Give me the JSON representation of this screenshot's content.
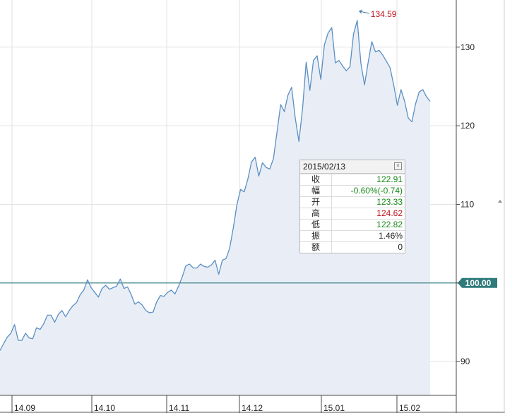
{
  "colors": {
    "line": "#5b8fc3",
    "area": "#e9eef6",
    "grid": "#e2e2e2",
    "axis": "#4a4a4a",
    "ref_line": "#2f7a7a",
    "ref_badge": "#2f7a7a",
    "up": "#c0141e",
    "down": "#1a8a1a",
    "neutral": "#222222"
  },
  "chart_data": {
    "type": "area",
    "ylim": [
      85.7,
      136.0
    ],
    "y_ticks": [
      90,
      100,
      110,
      120,
      130
    ],
    "y_tick_labels": [
      "90",
      "",
      "110",
      "120",
      "130"
    ],
    "x_ticks": [
      "14.09",
      "14.10",
      "14.11",
      "14.12",
      "15.01",
      "15.02"
    ],
    "reference_line": {
      "value": 100.0,
      "label": "100.00"
    },
    "peak": {
      "value": 134.59,
      "label": "134.59"
    },
    "grid": true,
    "series": [
      {
        "values": [
          91.4,
          92.3,
          93.1,
          93.6,
          94.7,
          92.7,
          92.7,
          93.6,
          93.0,
          92.9,
          94.3,
          94.1,
          94.8,
          95.9,
          95.9,
          95.0,
          96.0,
          96.5,
          95.7,
          96.5,
          97.1,
          97.5,
          98.5,
          99.1,
          100.4,
          99.4,
          98.8,
          98.2,
          99.3,
          99.7,
          99.2,
          99.4,
          99.6,
          100.5,
          99.3,
          99.5,
          98.5,
          97.3,
          97.6,
          97.2,
          96.5,
          96.2,
          96.3,
          97.6,
          98.4,
          98.3,
          98.8,
          99.1,
          98.6,
          99.6,
          100.8,
          102.2,
          102.4,
          101.9,
          101.9,
          102.4,
          102.1,
          102.0,
          102.3,
          102.9,
          101.1,
          102.9,
          103.1,
          104.4,
          107.0,
          110.0,
          111.9,
          111.6,
          113.2,
          115.4,
          116.0,
          113.6,
          115.3,
          114.7,
          114.5,
          115.8,
          119.2,
          122.7,
          121.8,
          123.9,
          124.9,
          121.0,
          118.0,
          122.2,
          128.1,
          124.5,
          128.3,
          128.9,
          125.9,
          130.3,
          131.8,
          132.5,
          128.0,
          128.3,
          127.6,
          127.0,
          127.5,
          131.7,
          133.4,
          128.0,
          125.2,
          128.1,
          130.7,
          129.4,
          129.6,
          129.0,
          128.2,
          127.4,
          125.2,
          122.6,
          124.6,
          123.1,
          121.0,
          120.5,
          122.8,
          124.3,
          124.6,
          123.7,
          123.1
        ]
      }
    ],
    "highlight": {
      "date": "2015/02/13",
      "rows": [
        {
          "key": "收",
          "value": "122.91",
          "tone": "down"
        },
        {
          "key": "幅",
          "value": "-0.60%(-0.74)",
          "tone": "down"
        },
        {
          "key": "开",
          "value": "123.33",
          "tone": "down"
        },
        {
          "key": "高",
          "value": "124.62",
          "tone": "up"
        },
        {
          "key": "低",
          "value": "122.82",
          "tone": "down"
        },
        {
          "key": "振",
          "value": "1.46%",
          "tone": "neutral"
        },
        {
          "key": "额",
          "value": "0",
          "tone": "neutral"
        }
      ]
    }
  }
}
